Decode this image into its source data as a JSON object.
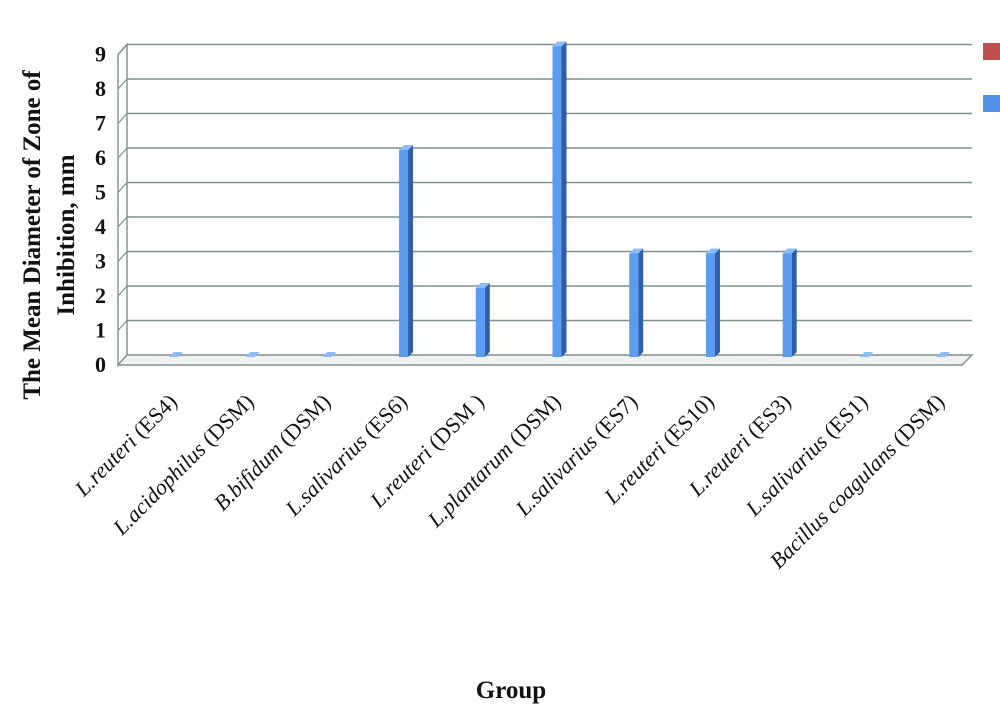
{
  "chart_data": {
    "type": "bar",
    "title": "",
    "xlabel": "Group",
    "ylabel_lines": [
      "The Mean Diameter of Zone of",
      "Inhibition, mm"
    ],
    "ylim": [
      0,
      9
    ],
    "yticks": [
      0,
      1,
      2,
      3,
      4,
      5,
      6,
      7,
      8,
      9
    ],
    "grid": true,
    "legend_position": "right",
    "categories": [
      "L.reuteri (ES4)",
      "L.acidophilus (DSM)",
      "B.bifidum (DSM)",
      "L.salivarius (ES6)",
      "L.reuteri (DSM )",
      "L.plantarum (DSM)",
      "L.salivarius (ES7)",
      "L.reuteri (ES10)",
      "L.reuteri (ES3)",
      "L.salivarius (ES1)",
      "Bacillus coagulans (DSM)"
    ],
    "category_parts": [
      {
        "italic": "L.reuteri",
        "rest": " (ES4)"
      },
      {
        "italic": "L.acidophilus",
        "rest": " (DSM)"
      },
      {
        "italic": "B.bifidum",
        "rest": " (DSM)"
      },
      {
        "italic": "L.salivarius",
        "rest": " (ES6)"
      },
      {
        "italic": "L.reuteri",
        "rest": " (DSM )"
      },
      {
        "italic": "L.plantarum",
        "rest": " (DSM)"
      },
      {
        "italic": "L.salivarius",
        "rest": " (ES7)"
      },
      {
        "italic": "L.reuteri",
        "rest": " (ES10)"
      },
      {
        "italic": "L.reuteri",
        "rest": " (ES3)"
      },
      {
        "italic": "L.salivarius",
        "rest": " (ES1)"
      },
      {
        "italic": "Bacillus coagulans",
        "rest": " (DSM)"
      }
    ],
    "series": [
      {
        "values": [
          0,
          0,
          0,
          0,
          0,
          0,
          0,
          0,
          0,
          0,
          0
        ],
        "color": "#c0504d"
      },
      {
        "values": [
          0,
          0,
          0,
          6,
          2,
          9,
          3,
          3,
          3,
          0,
          0
        ],
        "color": "#4f81bd"
      }
    ],
    "colors": {
      "bar_front": "#5b9bf0",
      "bar_side": "#2f5fa8",
      "bar_top": "#8cbcf7",
      "grid": "#7f8f8f",
      "legend_red": "#c0504d",
      "legend_blue": "#4f8fe6"
    }
  }
}
